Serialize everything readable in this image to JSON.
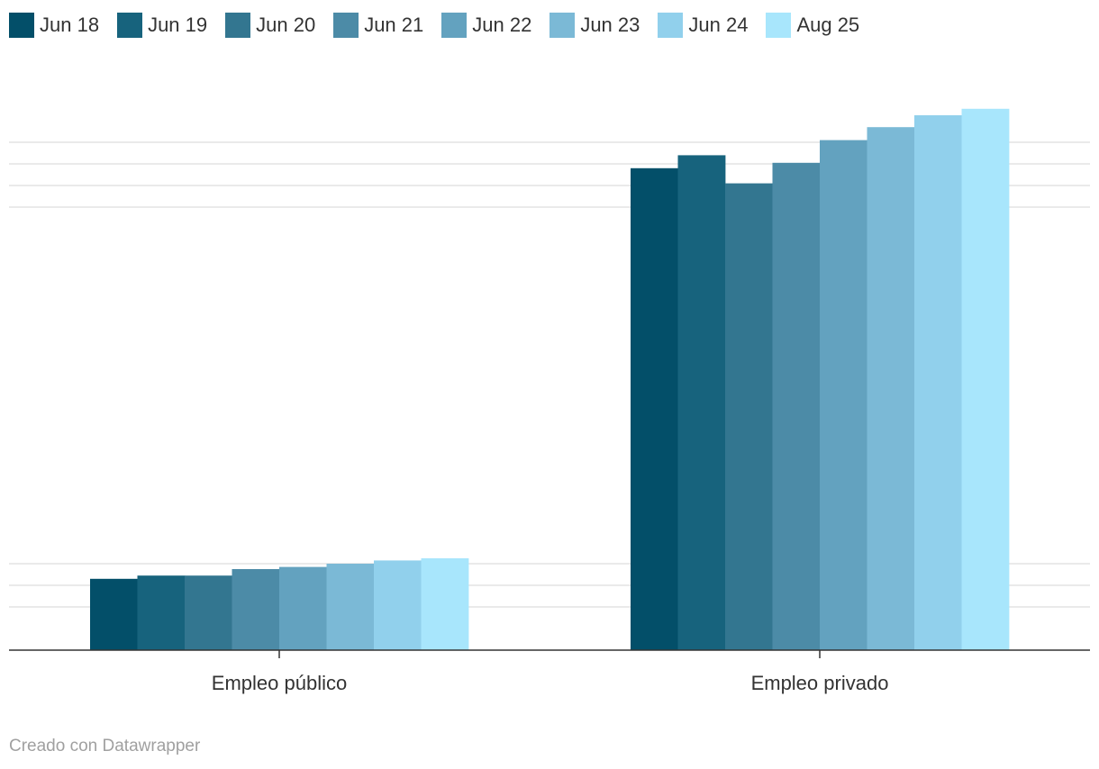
{
  "chart_data": {
    "type": "bar",
    "categories": [
      "Empleo público",
      "Empleo privado"
    ],
    "series": [
      {
        "name": "Jun 18",
        "color": "#034f69",
        "values": [
          3.3,
          22.3
        ]
      },
      {
        "name": "Jun 19",
        "color": "#17637d",
        "values": [
          3.45,
          22.9
        ]
      },
      {
        "name": "Jun 20",
        "color": "#337690",
        "values": [
          3.45,
          21.6
        ]
      },
      {
        "name": "Jun 21",
        "color": "#4c8ba7",
        "values": [
          3.75,
          22.55
        ]
      },
      {
        "name": "Jun 22",
        "color": "#63a2bf",
        "values": [
          3.85,
          23.6
        ]
      },
      {
        "name": "Jun 23",
        "color": "#7bb9d6",
        "values": [
          4.0,
          24.2
        ]
      },
      {
        "name": "Jun 24",
        "color": "#91d0ec",
        "values": [
          4.15,
          24.75
        ]
      },
      {
        "name": "Aug 25",
        "color": "#a8e6fc",
        "values": [
          4.25,
          25.05
        ]
      }
    ],
    "xlabel": "",
    "ylabel": "",
    "ylim": [
      0,
      30
    ],
    "grid": true,
    "legend": "top-left"
  },
  "footer": {
    "credit": "Creado con Datawrapper"
  }
}
